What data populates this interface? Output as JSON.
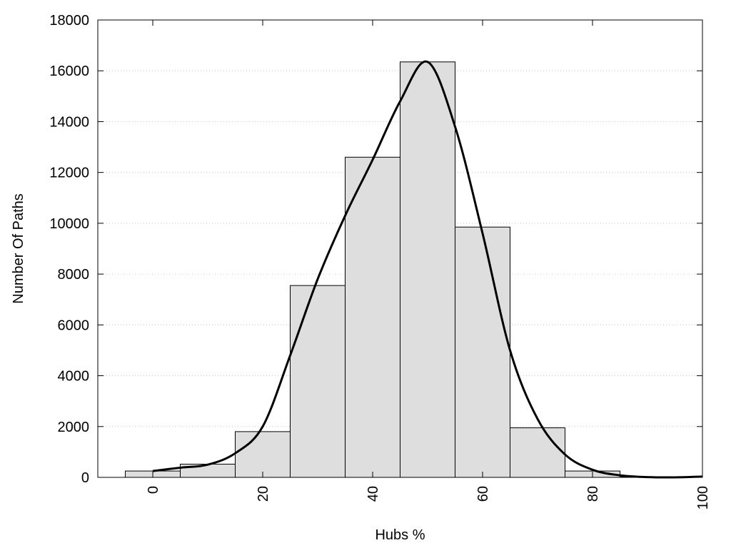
{
  "chart_data": {
    "type": "bar",
    "title": "",
    "xlabel": "Hubs %",
    "ylabel": "Number Of Paths",
    "xlim": [
      -10,
      100
    ],
    "ylim": [
      0,
      18000
    ],
    "bin_width": 10,
    "x": [
      0,
      10,
      20,
      30,
      40,
      50,
      60,
      70,
      80,
      90
    ],
    "values": [
      250,
      520,
      1800,
      7550,
      12600,
      16350,
      9850,
      1950,
      250,
      20
    ],
    "curve": {
      "x": [
        0,
        5,
        10,
        15,
        20,
        25,
        30,
        35,
        40,
        45,
        50,
        55,
        60,
        65,
        70,
        75,
        80,
        85,
        90,
        95,
        100
      ],
      "y": [
        250,
        380,
        500,
        950,
        2000,
        4800,
        7800,
        10300,
        12500,
        14800,
        16350,
        13800,
        9600,
        5000,
        2300,
        900,
        300,
        80,
        10,
        0,
        30
      ]
    },
    "xticks": [
      0,
      20,
      40,
      60,
      80,
      100
    ],
    "yticks": [
      0,
      2000,
      4000,
      6000,
      8000,
      10000,
      12000,
      14000,
      16000,
      18000
    ],
    "grid": "horizontal dotted",
    "colors": {
      "bar_fill": "#dedede",
      "bar_stroke": "#000000",
      "curve": "#000000",
      "grid": "#c8c8c8"
    }
  }
}
